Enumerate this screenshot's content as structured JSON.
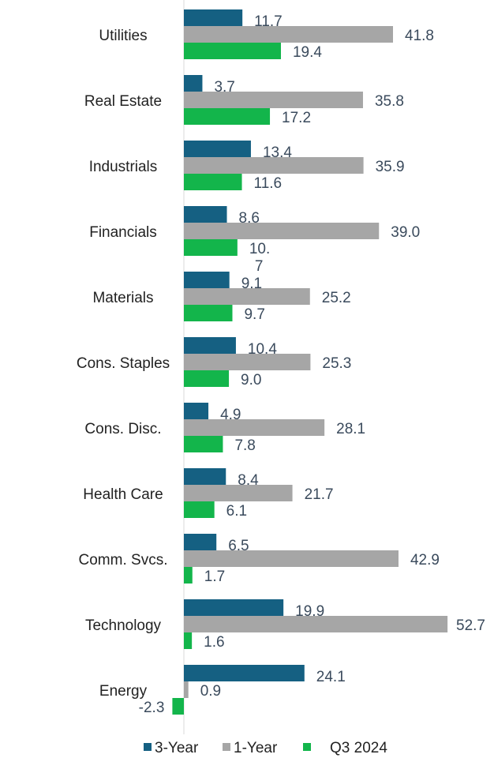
{
  "chart_data": {
    "type": "bar",
    "orientation": "horizontal",
    "categories": [
      "Utilities",
      "Real Estate",
      "Industrials",
      "Financials",
      "Materials",
      "Cons. Staples",
      "Cons. Disc.",
      "Health Care",
      "Comm. Svcs.",
      "Technology",
      "Energy"
    ],
    "series": [
      {
        "name": "3-Year",
        "color": "#156082",
        "values": [
          11.7,
          3.7,
          13.4,
          8.6,
          9.1,
          10.4,
          4.9,
          8.4,
          6.5,
          19.9,
          24.1
        ]
      },
      {
        "name": "1-Year",
        "color": "#a6a6a6",
        "values": [
          41.8,
          35.8,
          35.9,
          39.0,
          25.2,
          25.3,
          28.1,
          21.7,
          42.9,
          52.7,
          0.9
        ]
      },
      {
        "name": "Q3 2024",
        "color": "#13b54b",
        "values": [
          19.4,
          17.2,
          11.6,
          10.7,
          9.7,
          9.0,
          7.8,
          6.1,
          1.7,
          1.6,
          -2.3
        ]
      }
    ],
    "value_labels": [
      [
        "11.7",
        "3.7",
        "13.4",
        "8.6",
        "9.1",
        "10.4",
        "4.9",
        "8.4",
        "6.5",
        "19.9",
        "24.1"
      ],
      [
        "41.8",
        "35.8",
        "35.9",
        "39.0",
        "25.2",
        "25.3",
        "28.1",
        "21.7",
        "42.9",
        "52.7",
        "0.9"
      ],
      [
        "19.4",
        "17.2",
        "11.6",
        "10.",
        "9.7",
        "9.0",
        "7.8",
        "6.1",
        "1.7",
        "1.6",
        "-2.3"
      ]
    ],
    "wrapped_label_tail": "7",
    "legend": {
      "position": "bottom",
      "entries": [
        "3-Year",
        "1-Year",
        "Q3 2024"
      ]
    },
    "grid": false
  }
}
